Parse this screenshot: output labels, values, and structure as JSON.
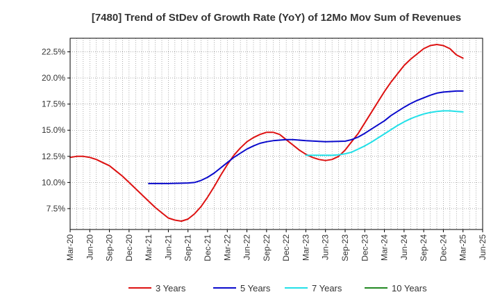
{
  "chart_data": {
    "type": "line",
    "title": "[7480]  Trend of StDev of Growth Rate (YoY) of 12Mo Mov Sum of Revenues",
    "xlabel": "",
    "ylabel": "",
    "x_ticks": [
      "Mar-20",
      "Jun-20",
      "Sep-20",
      "Dec-20",
      "Mar-21",
      "Jun-21",
      "Sep-21",
      "Dec-21",
      "Mar-22",
      "Jun-22",
      "Sep-22",
      "Dec-22",
      "Mar-23",
      "Jun-23",
      "Sep-23",
      "Dec-23",
      "Mar-24",
      "Jun-24",
      "Sep-24",
      "Dec-24",
      "Mar-25",
      "Jun-25"
    ],
    "y_ticks": [
      "7.5%",
      "10.0%",
      "12.5%",
      "15.0%",
      "17.5%",
      "20.0%",
      "22.5%"
    ],
    "y_tick_values": [
      7.5,
      10.0,
      12.5,
      15.0,
      17.5,
      20.0,
      22.5
    ],
    "ylim": [
      5.5,
      23.8
    ],
    "grid": true,
    "legend_position": "bottom",
    "series": [
      {
        "name": "3 Years",
        "color": "#dd1111",
        "x": [
          "Mar-20",
          "Apr-20",
          "May-20",
          "Jun-20",
          "Jul-20",
          "Aug-20",
          "Sep-20",
          "Oct-20",
          "Nov-20",
          "Dec-20",
          "Jan-21",
          "Feb-21",
          "Mar-21",
          "Apr-21",
          "May-21",
          "Jun-21",
          "Jul-21",
          "Aug-21",
          "Sep-21",
          "Oct-21",
          "Nov-21",
          "Dec-21",
          "Jan-22",
          "Feb-22",
          "Mar-22",
          "Apr-22",
          "May-22",
          "Jun-22",
          "Jul-22",
          "Aug-22",
          "Sep-22",
          "Oct-22",
          "Nov-22",
          "Dec-22",
          "Jan-23",
          "Feb-23",
          "Mar-23",
          "Apr-23",
          "May-23",
          "Jun-23",
          "Jul-23",
          "Aug-23",
          "Sep-23",
          "Oct-23",
          "Nov-23",
          "Dec-23",
          "Jan-24",
          "Feb-24",
          "Mar-24",
          "Apr-24",
          "May-24",
          "Jun-24",
          "Jul-24",
          "Aug-24",
          "Sep-24",
          "Oct-24",
          "Nov-24",
          "Dec-24",
          "Jan-25",
          "Feb-25",
          "Mar-25"
        ],
        "values": [
          12.4,
          12.5,
          12.5,
          12.4,
          12.2,
          11.9,
          11.6,
          11.1,
          10.6,
          10.0,
          9.4,
          8.8,
          8.2,
          7.6,
          7.1,
          6.6,
          6.4,
          6.3,
          6.5,
          7.0,
          7.7,
          8.6,
          9.6,
          10.7,
          11.7,
          12.6,
          13.3,
          13.9,
          14.3,
          14.6,
          14.8,
          14.8,
          14.6,
          14.1,
          13.6,
          13.1,
          12.7,
          12.4,
          12.2,
          12.1,
          12.2,
          12.5,
          13.1,
          13.9,
          14.7,
          15.7,
          16.7,
          17.7,
          18.7,
          19.6,
          20.4,
          21.2,
          21.8,
          22.3,
          22.8,
          23.1,
          23.2,
          23.1,
          22.8,
          22.2,
          21.9
        ],
        "end": "Mar-25"
      },
      {
        "name": "5 Years",
        "color": "#0a0acc",
        "x": [
          "Mar-21",
          "Jun-21",
          "Sep-21",
          "Oct-21",
          "Nov-21",
          "Dec-21",
          "Jan-22",
          "Feb-22",
          "Mar-22",
          "Apr-22",
          "May-22",
          "Jun-22",
          "Jul-22",
          "Aug-22",
          "Sep-22",
          "Oct-22",
          "Nov-22",
          "Dec-22",
          "Jan-23",
          "Feb-23",
          "Mar-23",
          "Jun-23",
          "Sep-23",
          "Oct-23",
          "Nov-23",
          "Dec-23",
          "Jan-24",
          "Feb-24",
          "Mar-24",
          "Apr-24",
          "May-24",
          "Jun-24",
          "Jul-24",
          "Aug-24",
          "Sep-24",
          "Oct-24",
          "Nov-24",
          "Dec-24",
          "Jan-25",
          "Feb-25",
          "Mar-25"
        ],
        "values": [
          9.9,
          9.9,
          9.95,
          10.0,
          10.2,
          10.5,
          10.9,
          11.4,
          11.9,
          12.4,
          12.8,
          13.2,
          13.5,
          13.75,
          13.9,
          14.0,
          14.05,
          14.1,
          14.1,
          14.05,
          14.0,
          13.9,
          13.95,
          14.1,
          14.35,
          14.7,
          15.1,
          15.5,
          15.9,
          16.4,
          16.8,
          17.2,
          17.55,
          17.85,
          18.1,
          18.35,
          18.55,
          18.65,
          18.7,
          18.75,
          18.75
        ]
      },
      {
        "name": "7 Years",
        "color": "#22e0e8",
        "x": [
          "Mar-23",
          "Apr-23",
          "May-23",
          "Jun-23",
          "Jul-23",
          "Aug-23",
          "Sep-23",
          "Oct-23",
          "Nov-23",
          "Dec-23",
          "Jan-24",
          "Feb-24",
          "Mar-24",
          "Apr-24",
          "May-24",
          "Jun-24",
          "Jul-24",
          "Aug-24",
          "Sep-24",
          "Oct-24",
          "Nov-24",
          "Dec-24",
          "Jan-25",
          "Feb-25",
          "Mar-25"
        ],
        "values": [
          12.6,
          12.6,
          12.6,
          12.6,
          12.6,
          12.65,
          12.75,
          12.9,
          13.2,
          13.5,
          13.85,
          14.25,
          14.65,
          15.05,
          15.45,
          15.8,
          16.1,
          16.35,
          16.55,
          16.7,
          16.8,
          16.85,
          16.85,
          16.8,
          16.75
        ]
      },
      {
        "name": "10 Years",
        "color": "#228822",
        "x": [],
        "values": []
      }
    ]
  }
}
